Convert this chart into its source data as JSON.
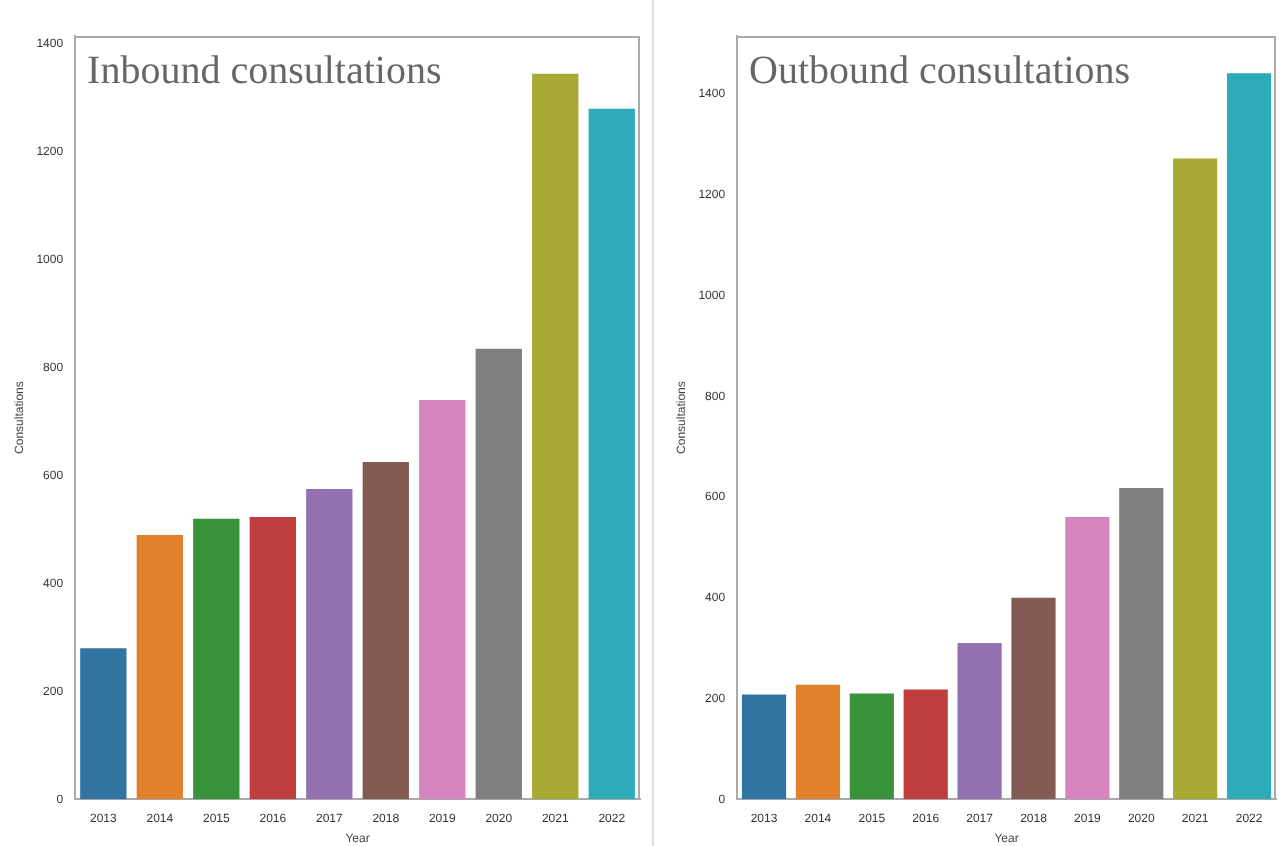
{
  "chart_data": [
    {
      "type": "bar",
      "title": "Inbound consultations",
      "xlabel": "Year",
      "ylabel": "Consultations",
      "categories": [
        "2013",
        "2014",
        "2015",
        "2016",
        "2017",
        "2018",
        "2019",
        "2020",
        "2021",
        "2022"
      ],
      "values": [
        280,
        490,
        520,
        523,
        575,
        625,
        740,
        835,
        1345,
        1280
      ],
      "colors": [
        "#3274a1",
        "#e1812c",
        "#3a923a",
        "#c03d3e",
        "#9372b2",
        "#845b53",
        "#d684bd",
        "#7f7f7f",
        "#a9aa35",
        "#2eabb8"
      ],
      "ylim": [
        0,
        1415
      ],
      "yticks": [
        0,
        200,
        400,
        600,
        800,
        1000,
        1200,
        1400
      ],
      "grid": false
    },
    {
      "type": "bar",
      "title": "Outbound consultations",
      "xlabel": "Year",
      "ylabel": "Consultations",
      "categories": [
        "2013",
        "2014",
        "2015",
        "2016",
        "2017",
        "2018",
        "2019",
        "2020",
        "2021",
        "2022"
      ],
      "values": [
        208,
        227,
        210,
        218,
        310,
        400,
        560,
        618,
        1272,
        1441
      ],
      "colors": [
        "#3274a1",
        "#e1812c",
        "#3a923a",
        "#c03d3e",
        "#9372b2",
        "#845b53",
        "#d684bd",
        "#7f7f7f",
        "#a9aa35",
        "#2eabb8"
      ],
      "ylim": [
        0,
        1515
      ],
      "yticks": [
        0,
        200,
        400,
        600,
        800,
        1000,
        1200,
        1400
      ],
      "grid": false
    }
  ]
}
